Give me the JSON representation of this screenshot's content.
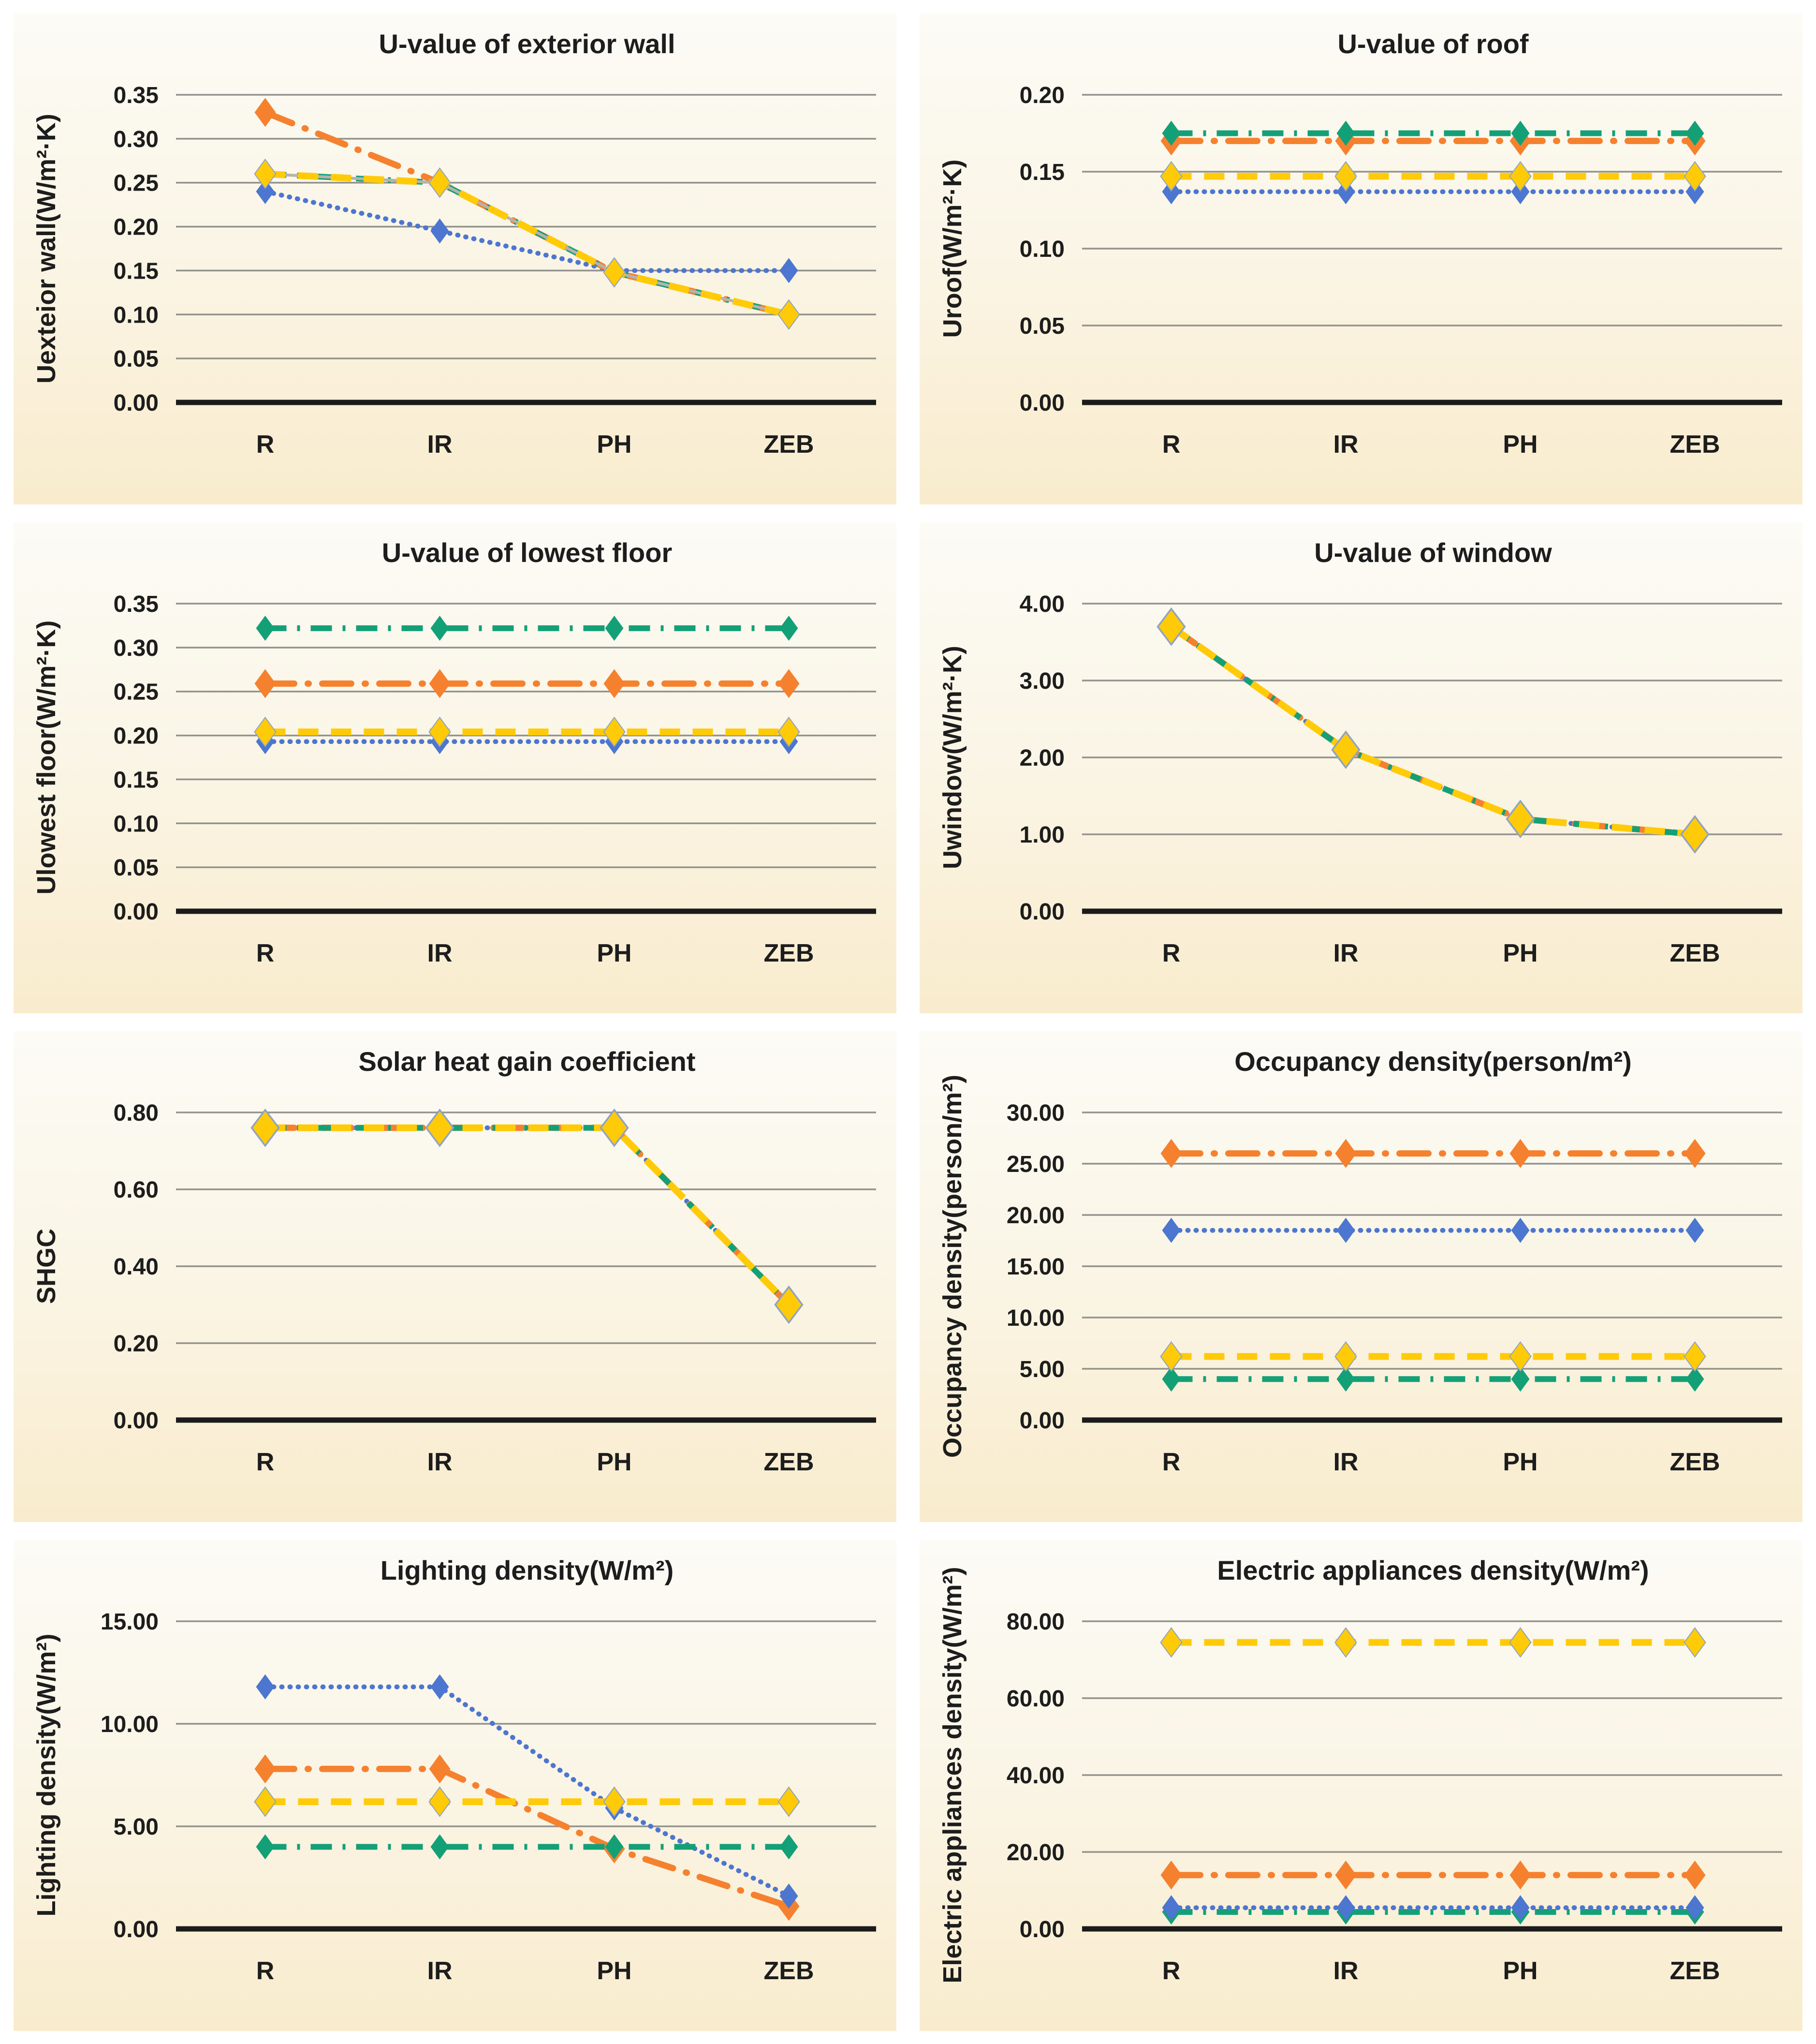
{
  "palette": {
    "blue": "#4C76CF",
    "orange": "#F5812F",
    "yellow": "#FFCB08",
    "green": "#14A077",
    "gridline": "#92928E",
    "zero_axis": "#1b1b1b",
    "text": "#1d1d1d",
    "marker_outline": "#8FA3C4",
    "shadow_line": "#B6B3AB",
    "panel_top": "#FCFBF6",
    "panel_bottom": "#F9ECCD"
  },
  "chart_data": [
    {
      "type": "line",
      "title": "U-value of exterior wall",
      "ylabel": "Uexteior wall(W/m²·K)",
      "ylim": [
        0,
        0.35
      ],
      "y_step": 0.05,
      "grid": true,
      "legend": "none",
      "categories": [
        "R",
        "IR",
        "PH",
        "ZEB"
      ],
      "series": [
        {
          "name": "blue-dotted",
          "color": "blue",
          "style": "dotted",
          "values": [
            0.24,
            0.195,
            0.15,
            0.15
          ]
        },
        {
          "name": "orange-dash-dot",
          "color": "orange",
          "style": "dash-dot",
          "values": [
            0.33,
            0.25,
            0.148,
            0.1
          ]
        },
        {
          "name": "green-dash-dot",
          "color": "green",
          "style": "dash-dot",
          "values": [
            0.26,
            0.25,
            0.148,
            0.1
          ]
        },
        {
          "name": "yellow-dashed",
          "color": "yellow",
          "style": "dashed",
          "values": [
            0.26,
            0.25,
            0.148,
            0.1
          ],
          "shadow": true
        }
      ]
    },
    {
      "type": "line",
      "title": "U-value of roof",
      "ylabel": "Uroof(W/m²·K)",
      "ylim": [
        0,
        0.2
      ],
      "y_step": 0.05,
      "grid": true,
      "legend": "none",
      "categories": [
        "R",
        "IR",
        "PH",
        "ZEB"
      ],
      "series": [
        {
          "name": "blue-dotted",
          "color": "blue",
          "style": "dotted",
          "values": [
            0.137,
            0.137,
            0.137,
            0.137
          ]
        },
        {
          "name": "yellow-dashed",
          "color": "yellow",
          "style": "dashed",
          "values": [
            0.147,
            0.147,
            0.147,
            0.147
          ]
        },
        {
          "name": "orange-dash-dot",
          "color": "orange",
          "style": "dash-dot",
          "values": [
            0.17,
            0.17,
            0.17,
            0.17
          ]
        },
        {
          "name": "green-dash-dot",
          "color": "green",
          "style": "dash-dot",
          "values": [
            0.175,
            0.175,
            0.175,
            0.175
          ]
        }
      ]
    },
    {
      "type": "line",
      "title": "U-value of lowest floor",
      "ylabel": "Ulowest floor(W/m²·K)",
      "ylim": [
        0,
        0.35
      ],
      "y_step": 0.05,
      "grid": true,
      "legend": "none",
      "categories": [
        "R",
        "IR",
        "PH",
        "ZEB"
      ],
      "series": [
        {
          "name": "blue-dotted",
          "color": "blue",
          "style": "dotted",
          "values": [
            0.193,
            0.193,
            0.193,
            0.193
          ]
        },
        {
          "name": "yellow-dashed",
          "color": "yellow",
          "style": "dashed",
          "values": [
            0.204,
            0.204,
            0.204,
            0.204
          ]
        },
        {
          "name": "orange-dash-dot",
          "color": "orange",
          "style": "dash-dot",
          "values": [
            0.259,
            0.259,
            0.259,
            0.259
          ]
        },
        {
          "name": "green-dash-dot",
          "color": "green",
          "style": "dash-dot",
          "values": [
            0.322,
            0.322,
            0.322,
            0.322
          ]
        }
      ]
    },
    {
      "type": "line",
      "title": "U-value of window",
      "ylabel": "Uwindow(W/m²·K)",
      "ylim": [
        0,
        4.0
      ],
      "y_step": 1.0,
      "grid": true,
      "legend": "none",
      "categories": [
        "R",
        "IR",
        "PH",
        "ZEB"
      ],
      "series": [
        {
          "name": "blue-dotted",
          "color": "blue",
          "style": "dotted",
          "values": [
            3.7,
            2.1,
            1.2,
            1.0
          ]
        },
        {
          "name": "orange-dash-dot",
          "color": "orange",
          "style": "dash-dot",
          "values": [
            3.7,
            2.1,
            1.2,
            1.0
          ]
        },
        {
          "name": "green-dash-dot",
          "color": "green",
          "style": "dash-dot",
          "values": [
            3.7,
            2.1,
            1.2,
            1.0
          ]
        },
        {
          "name": "yellow-dashed",
          "color": "yellow",
          "style": "dashed",
          "values": [
            3.7,
            2.1,
            1.2,
            1.0
          ],
          "big_markers": true
        }
      ]
    },
    {
      "type": "line",
      "title": "Solar heat gain coefficient",
      "ylabel": "SHGC",
      "ylim": [
        0,
        0.8
      ],
      "y_step": 0.2,
      "grid": true,
      "legend": "none",
      "categories": [
        "R",
        "IR",
        "PH",
        "ZEB"
      ],
      "series": [
        {
          "name": "blue-dotted",
          "color": "blue",
          "style": "dotted",
          "values": [
            0.76,
            0.76,
            0.76,
            0.3
          ]
        },
        {
          "name": "orange-dash-dot",
          "color": "orange",
          "style": "dash-dot",
          "values": [
            0.76,
            0.76,
            0.76,
            0.3
          ]
        },
        {
          "name": "green-dash-dot",
          "color": "green",
          "style": "dash-dot",
          "values": [
            0.76,
            0.76,
            0.76,
            0.3
          ]
        },
        {
          "name": "yellow-dashed",
          "color": "yellow",
          "style": "dashed",
          "values": [
            0.76,
            0.76,
            0.76,
            0.3
          ],
          "big_markers": true
        }
      ]
    },
    {
      "type": "line",
      "title": "Occupancy density(person/m²)",
      "ylabel": "Occupancy density(person/m²)",
      "ylim": [
        0,
        30.0
      ],
      "y_step": 5.0,
      "grid": true,
      "legend": "none",
      "categories": [
        "R",
        "IR",
        "PH",
        "ZEB"
      ],
      "series": [
        {
          "name": "green-dash-dot",
          "color": "green",
          "style": "dash-dot",
          "values": [
            4.0,
            4.0,
            4.0,
            4.0
          ]
        },
        {
          "name": "yellow-dashed",
          "color": "yellow",
          "style": "dashed",
          "values": [
            6.2,
            6.2,
            6.2,
            6.2
          ]
        },
        {
          "name": "blue-dotted",
          "color": "blue",
          "style": "dotted",
          "values": [
            18.5,
            18.5,
            18.5,
            18.5
          ]
        },
        {
          "name": "orange-dash-dot",
          "color": "orange",
          "style": "dash-dot",
          "values": [
            26.0,
            26.0,
            26.0,
            26.0
          ]
        }
      ]
    },
    {
      "type": "line",
      "title": "Lighting density(W/m²)",
      "ylabel": "Lighting density(W/m²)",
      "ylim": [
        0,
        15.0
      ],
      "y_step": 5.0,
      "grid": true,
      "legend": "none",
      "categories": [
        "R",
        "IR",
        "PH",
        "ZEB"
      ],
      "series": [
        {
          "name": "orange-dash-dot",
          "color": "orange",
          "style": "dash-dot",
          "values": [
            7.8,
            7.8,
            3.9,
            1.1
          ]
        },
        {
          "name": "blue-dotted",
          "color": "blue",
          "style": "dotted",
          "values": [
            11.8,
            11.8,
            5.9,
            1.6
          ]
        },
        {
          "name": "green-dash-dot",
          "color": "green",
          "style": "dash-dot",
          "values": [
            4.0,
            4.0,
            4.0,
            4.0
          ]
        },
        {
          "name": "yellow-dashed",
          "color": "yellow",
          "style": "dashed",
          "values": [
            6.2,
            6.2,
            6.2,
            6.2
          ]
        }
      ]
    },
    {
      "type": "line",
      "title": "Electric appliances density(W/m²)",
      "ylabel": "Electric appliances density(W/m²)",
      "ylim": [
        0,
        80.0
      ],
      "y_step": 20.0,
      "grid": true,
      "legend": "none",
      "categories": [
        "R",
        "IR",
        "PH",
        "ZEB"
      ],
      "series": [
        {
          "name": "green-dash-dot",
          "color": "green",
          "style": "dash-dot",
          "values": [
            4.4,
            4.4,
            4.4,
            4.4
          ]
        },
        {
          "name": "blue-dotted",
          "color": "blue",
          "style": "dotted",
          "values": [
            5.5,
            5.5,
            5.5,
            5.5
          ]
        },
        {
          "name": "orange-dash-dot",
          "color": "orange",
          "style": "dash-dot",
          "values": [
            14.0,
            14.0,
            14.0,
            14.0
          ]
        },
        {
          "name": "yellow-dashed",
          "color": "yellow",
          "style": "dashed",
          "values": [
            74.5,
            74.5,
            74.5,
            74.5
          ]
        }
      ]
    }
  ]
}
